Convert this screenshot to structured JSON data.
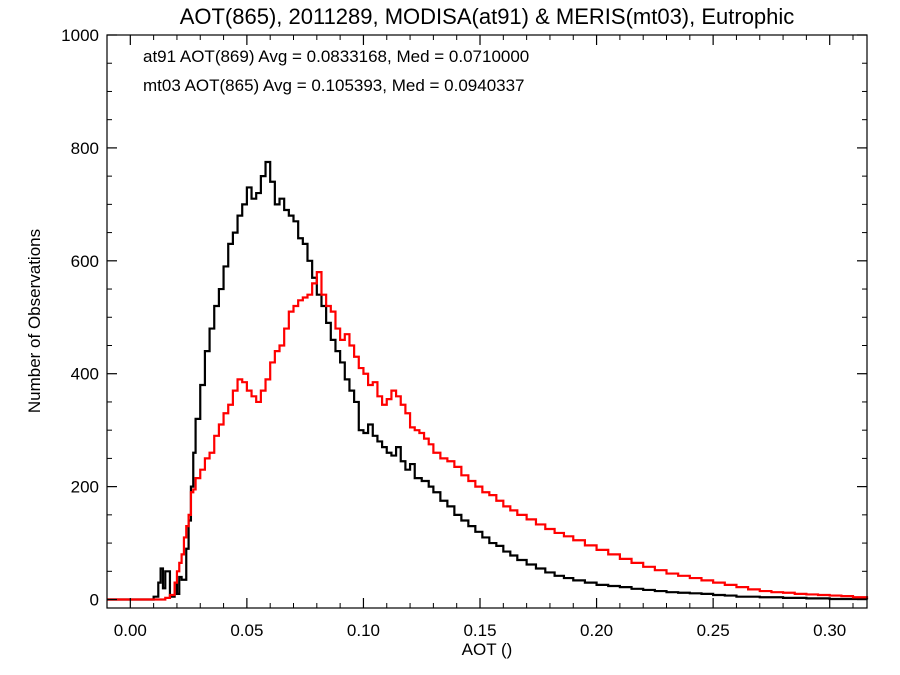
{
  "chart_data": {
    "type": "line",
    "title": "AOT(865), 2011289, MODISA(at91) & MERIS(mt03), Eutrophic",
    "xlabel": "AOT ()",
    "ylabel": "Number of Observations",
    "xlim": [
      -0.01,
      0.316
    ],
    "ylim": [
      -15,
      1000
    ],
    "xticks": [
      "0.00",
      "0.05",
      "0.10",
      "0.15",
      "0.20",
      "0.25",
      "0.30"
    ],
    "yticks": [
      "0",
      "200",
      "400",
      "600",
      "800",
      "1000"
    ],
    "grid": false,
    "annotations": [
      {
        "text": "at91 AOT(869) Avg = 0.0833168, Med = 0.0710000",
        "color": "#000000"
      },
      {
        "text": "mt03 AOT(865) Avg = 0.105393, Med = 0.0940337",
        "color": "#ff0000"
      }
    ],
    "series": [
      {
        "color": "#000000",
        "style": "step",
        "points": [
          [
            -0.01,
            0
          ],
          [
            0.005,
            0
          ],
          [
            0.01,
            5
          ],
          [
            0.012,
            30
          ],
          [
            0.013,
            55
          ],
          [
            0.014,
            20
          ],
          [
            0.015,
            50
          ],
          [
            0.017,
            5
          ],
          [
            0.019,
            30
          ],
          [
            0.02,
            10
          ],
          [
            0.021,
            40
          ],
          [
            0.022,
            35
          ],
          [
            0.024,
            90
          ],
          [
            0.025,
            140
          ],
          [
            0.026,
            200
          ],
          [
            0.027,
            260
          ],
          [
            0.028,
            320
          ],
          [
            0.03,
            380
          ],
          [
            0.032,
            440
          ],
          [
            0.034,
            480
          ],
          [
            0.036,
            520
          ],
          [
            0.038,
            550
          ],
          [
            0.04,
            590
          ],
          [
            0.042,
            630
          ],
          [
            0.044,
            650
          ],
          [
            0.046,
            680
          ],
          [
            0.048,
            700
          ],
          [
            0.05,
            730
          ],
          [
            0.052,
            710
          ],
          [
            0.054,
            720
          ],
          [
            0.056,
            750
          ],
          [
            0.058,
            775
          ],
          [
            0.06,
            740
          ],
          [
            0.062,
            700
          ],
          [
            0.064,
            710
          ],
          [
            0.066,
            690
          ],
          [
            0.068,
            680
          ],
          [
            0.07,
            670
          ],
          [
            0.072,
            640
          ],
          [
            0.074,
            630
          ],
          [
            0.076,
            600
          ],
          [
            0.078,
            570
          ],
          [
            0.08,
            540
          ],
          [
            0.082,
            520
          ],
          [
            0.084,
            490
          ],
          [
            0.086,
            460
          ],
          [
            0.088,
            440
          ],
          [
            0.09,
            420
          ],
          [
            0.092,
            390
          ],
          [
            0.094,
            370
          ],
          [
            0.096,
            350
          ],
          [
            0.098,
            300
          ],
          [
            0.1,
            295
          ],
          [
            0.102,
            310
          ],
          [
            0.104,
            290
          ],
          [
            0.106,
            280
          ],
          [
            0.108,
            270
          ],
          [
            0.11,
            260
          ],
          [
            0.112,
            255
          ],
          [
            0.114,
            270
          ],
          [
            0.116,
            245
          ],
          [
            0.118,
            230
          ],
          [
            0.12,
            240
          ],
          [
            0.122,
            215
          ],
          [
            0.125,
            210
          ],
          [
            0.128,
            200
          ],
          [
            0.13,
            190
          ],
          [
            0.133,
            175
          ],
          [
            0.136,
            165
          ],
          [
            0.139,
            150
          ],
          [
            0.142,
            140
          ],
          [
            0.145,
            130
          ],
          [
            0.148,
            120
          ],
          [
            0.151,
            110
          ],
          [
            0.154,
            100
          ],
          [
            0.157,
            95
          ],
          [
            0.16,
            85
          ],
          [
            0.163,
            78
          ],
          [
            0.166,
            70
          ],
          [
            0.17,
            62
          ],
          [
            0.174,
            55
          ],
          [
            0.178,
            48
          ],
          [
            0.182,
            42
          ],
          [
            0.186,
            38
          ],
          [
            0.19,
            34
          ],
          [
            0.195,
            30
          ],
          [
            0.2,
            26
          ],
          [
            0.205,
            24
          ],
          [
            0.21,
            22
          ],
          [
            0.215,
            19
          ],
          [
            0.22,
            17
          ],
          [
            0.225,
            15
          ],
          [
            0.23,
            13
          ],
          [
            0.235,
            12
          ],
          [
            0.24,
            11
          ],
          [
            0.245,
            10
          ],
          [
            0.25,
            8
          ],
          [
            0.255,
            7
          ],
          [
            0.26,
            5
          ],
          [
            0.27,
            4
          ],
          [
            0.28,
            3
          ],
          [
            0.29,
            2
          ],
          [
            0.3,
            1
          ],
          [
            0.316,
            0
          ]
        ]
      },
      {
        "color": "#ff0000",
        "style": "step",
        "points": [
          [
            -0.01,
            0
          ],
          [
            0.012,
            0
          ],
          [
            0.015,
            3
          ],
          [
            0.017,
            8
          ],
          [
            0.019,
            30
          ],
          [
            0.02,
            50
          ],
          [
            0.021,
            65
          ],
          [
            0.022,
            80
          ],
          [
            0.023,
            110
          ],
          [
            0.024,
            130
          ],
          [
            0.025,
            150
          ],
          [
            0.026,
            190
          ],
          [
            0.027,
            195
          ],
          [
            0.028,
            215
          ],
          [
            0.03,
            230
          ],
          [
            0.032,
            250
          ],
          [
            0.034,
            260
          ],
          [
            0.036,
            290
          ],
          [
            0.038,
            310
          ],
          [
            0.04,
            330
          ],
          [
            0.042,
            345
          ],
          [
            0.044,
            370
          ],
          [
            0.046,
            390
          ],
          [
            0.048,
            385
          ],
          [
            0.05,
            370
          ],
          [
            0.052,
            360
          ],
          [
            0.054,
            350
          ],
          [
            0.056,
            370
          ],
          [
            0.058,
            390
          ],
          [
            0.06,
            420
          ],
          [
            0.062,
            440
          ],
          [
            0.064,
            450
          ],
          [
            0.066,
            480
          ],
          [
            0.068,
            510
          ],
          [
            0.07,
            520
          ],
          [
            0.072,
            530
          ],
          [
            0.074,
            535
          ],
          [
            0.076,
            540
          ],
          [
            0.078,
            560
          ],
          [
            0.08,
            580
          ],
          [
            0.082,
            540
          ],
          [
            0.084,
            520
          ],
          [
            0.086,
            510
          ],
          [
            0.088,
            480
          ],
          [
            0.09,
            460
          ],
          [
            0.092,
            470
          ],
          [
            0.094,
            450
          ],
          [
            0.096,
            430
          ],
          [
            0.098,
            410
          ],
          [
            0.1,
            400
          ],
          [
            0.102,
            380
          ],
          [
            0.104,
            385
          ],
          [
            0.106,
            360
          ],
          [
            0.108,
            345
          ],
          [
            0.11,
            355
          ],
          [
            0.112,
            370
          ],
          [
            0.114,
            360
          ],
          [
            0.116,
            345
          ],
          [
            0.118,
            330
          ],
          [
            0.12,
            305
          ],
          [
            0.122,
            300
          ],
          [
            0.124,
            295
          ],
          [
            0.126,
            285
          ],
          [
            0.128,
            275
          ],
          [
            0.13,
            260
          ],
          [
            0.133,
            250
          ],
          [
            0.136,
            245
          ],
          [
            0.139,
            235
          ],
          [
            0.142,
            220
          ],
          [
            0.145,
            210
          ],
          [
            0.148,
            200
          ],
          [
            0.151,
            190
          ],
          [
            0.154,
            185
          ],
          [
            0.157,
            175
          ],
          [
            0.16,
            165
          ],
          [
            0.163,
            158
          ],
          [
            0.166,
            150
          ],
          [
            0.17,
            142
          ],
          [
            0.174,
            133
          ],
          [
            0.178,
            125
          ],
          [
            0.182,
            118
          ],
          [
            0.186,
            112
          ],
          [
            0.19,
            105
          ],
          [
            0.195,
            96
          ],
          [
            0.2,
            88
          ],
          [
            0.205,
            80
          ],
          [
            0.21,
            72
          ],
          [
            0.215,
            65
          ],
          [
            0.22,
            58
          ],
          [
            0.225,
            52
          ],
          [
            0.23,
            46
          ],
          [
            0.235,
            42
          ],
          [
            0.24,
            38
          ],
          [
            0.245,
            34
          ],
          [
            0.25,
            30
          ],
          [
            0.255,
            26
          ],
          [
            0.26,
            22
          ],
          [
            0.265,
            18
          ],
          [
            0.27,
            15
          ],
          [
            0.275,
            13
          ],
          [
            0.28,
            12
          ],
          [
            0.285,
            10
          ],
          [
            0.29,
            9
          ],
          [
            0.295,
            8
          ],
          [
            0.3,
            7
          ],
          [
            0.305,
            6
          ],
          [
            0.31,
            4
          ],
          [
            0.316,
            2
          ]
        ]
      }
    ]
  }
}
